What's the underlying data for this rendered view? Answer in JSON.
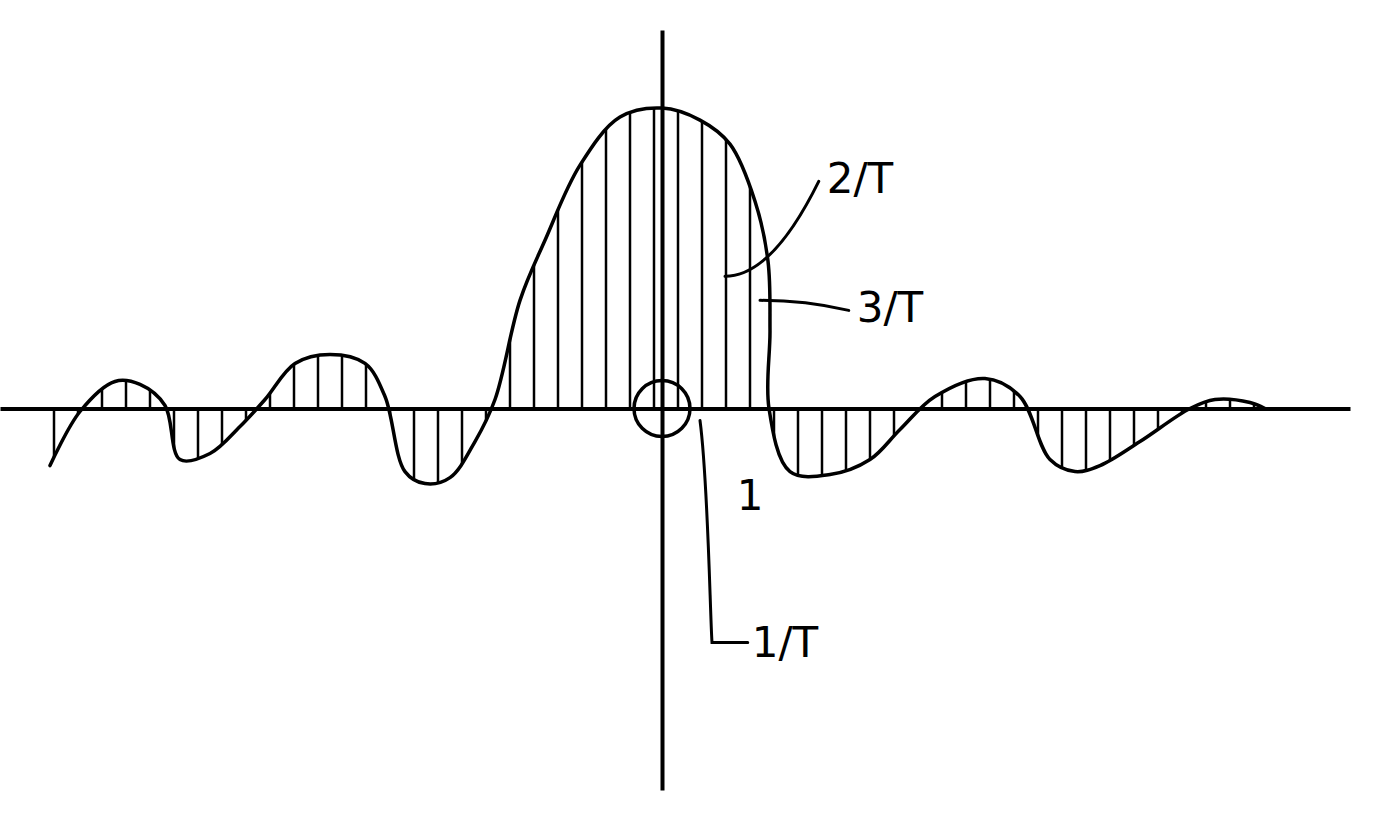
{
  "chart_data": {
    "type": "line",
    "color": "#000000",
    "grid": false,
    "tick_labels": false,
    "x": [
      -6.12,
      -5.82,
      -5.47,
      -5.22,
      -4.97,
      -4.82,
      -4.52,
      -4.22,
      -3.97,
      -3.67,
      -3.32,
      -2.97,
      -2.77,
      -2.57,
      -2.37,
      -2.12,
      -1.87,
      -1.67,
      -1.42,
      -1.17,
      -0.82,
      -0.42,
      0,
      0.38,
      0.68,
      0.93,
      1.06,
      1.08,
      1.07,
      1.28,
      1.68,
      2.08,
      2.38,
      2.73,
      3.23,
      3.58,
      3.88,
      4.13,
      4.38,
      4.78,
      5.28,
      5.53,
      5.88,
      6.03
    ],
    "values": [
      -0.19,
      -0.01,
      0.09,
      0.08,
      0.01,
      -0.17,
      -0.15,
      -0.06,
      0.03,
      0.15,
      0.18,
      0.15,
      0.04,
      -0.21,
      -0.25,
      -0.23,
      -0.11,
      0.03,
      0.36,
      0.56,
      0.81,
      0.97,
      1,
      0.96,
      0.88,
      0.69,
      0.49,
      0.26,
      0,
      -0.21,
      -0.22,
      -0.17,
      -0.07,
      0.04,
      0.1,
      0.04,
      -0.17,
      -0.21,
      -0.19,
      -0.11,
      0,
      0.03,
      0.02,
      0
    ],
    "xlim": [
      -6.62,
      6.88
    ],
    "ylim": [
      -1.27,
      1.26
    ],
    "xticks": [],
    "yticks": [],
    "annotations": [
      {
        "text": "2/T",
        "x": 0.63,
        "y": 0.44
      },
      {
        "text": "3/T",
        "x": 0.98,
        "y": 0.36
      },
      {
        "text": "1/T",
        "x": 0.38,
        "y": -0.04
      },
      {
        "text": "1",
        "x": 0.88,
        "y": -0.3
      }
    ]
  }
}
